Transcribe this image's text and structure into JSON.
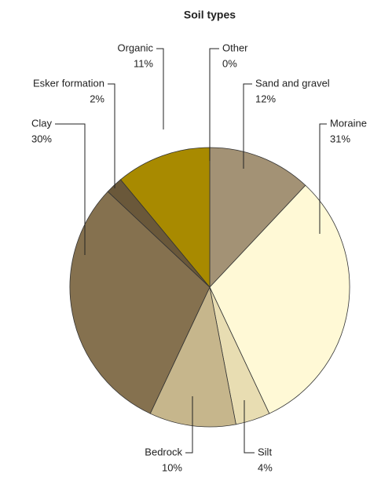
{
  "chart_data": {
    "type": "pie",
    "title": "Soil types",
    "categories": [
      "Other",
      "Sand and gravel",
      "Moraine",
      "Silt",
      "Bedrock",
      "Clay",
      "Esker formation",
      "Organic"
    ],
    "values": [
      0,
      12,
      31,
      4,
      10,
      30,
      2,
      11
    ],
    "value_labels": [
      "0%",
      "12%",
      "31%",
      "4%",
      "10%",
      "30%",
      "2%",
      "11%"
    ],
    "colors": [
      "#ffffff",
      "#a39275",
      "#fff9d6",
      "#e8ddb2",
      "#c6b68c",
      "#85714f",
      "#6a583a",
      "#a88a00"
    ]
  }
}
